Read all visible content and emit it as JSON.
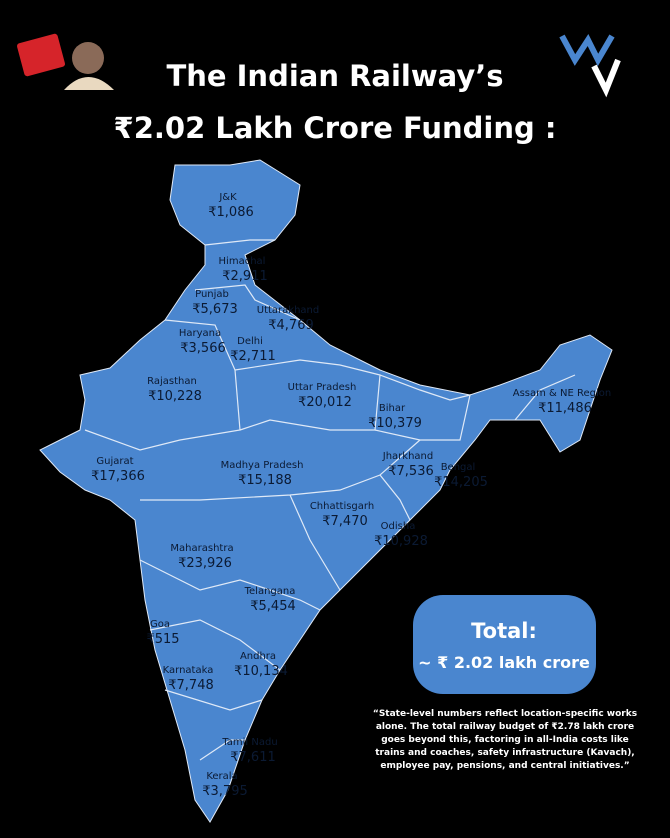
{
  "header": {
    "title_lines": [
      "The Indian Railway’s",
      "₹2.02 Lakh Crore Funding :"
    ]
  },
  "regions": [
    {
      "name": "J&K",
      "amount": "₹1,086"
    },
    {
      "name": "Himachal",
      "amount": "₹2,911"
    },
    {
      "name": "Punjab",
      "amount": "₹5,673"
    },
    {
      "name": "Uttarakhand",
      "amount": "₹4,769"
    },
    {
      "name": "Haryana",
      "amount": "₹3,566"
    },
    {
      "name": "Delhi",
      "amount": "₹2,711"
    },
    {
      "name": "Rajasthan",
      "amount": "₹10,228"
    },
    {
      "name": "Uttar Pradesh",
      "amount": "₹20,012"
    },
    {
      "name": "Bihar",
      "amount": "₹10,379"
    },
    {
      "name": "Assam & NE Region",
      "amount": "₹11,486"
    },
    {
      "name": "Gujarat",
      "amount": "₹17,366"
    },
    {
      "name": "Madhya Pradesh",
      "amount": "₹15,188"
    },
    {
      "name": "Jharkhand",
      "amount": "₹7,536"
    },
    {
      "name": "Bengal",
      "amount": "₹14,205"
    },
    {
      "name": "Chhattisgarh",
      "amount": "₹7,470"
    },
    {
      "name": "Odisha",
      "amount": "₹10,928"
    },
    {
      "name": "Maharashtra",
      "amount": "₹23,926"
    },
    {
      "name": "Telangana",
      "amount": "₹5,454"
    },
    {
      "name": "Goa",
      "amount": "₹515"
    },
    {
      "name": "Andhra",
      "amount": "₹10,134"
    },
    {
      "name": "Karnataka",
      "amount": "₹7,748"
    },
    {
      "name": "Tamil Nadu",
      "amount": "₹7,611"
    },
    {
      "name": "Kerala",
      "amount": "₹3,795"
    }
  ],
  "total": {
    "label": "Total:",
    "amount": "~ ₹ 2.02 lakh crore"
  },
  "note_lines": [
    "“State-level numbers reflect location-specific works",
    "alone. The total railway budget of ₹2.78 lakh crore",
    "goes beyond this, factoring in all-India costs like",
    "trains and coaches, safety infrastructure (Kavach),",
    "employee pay, pensions, and central initiatives.”"
  ]
}
